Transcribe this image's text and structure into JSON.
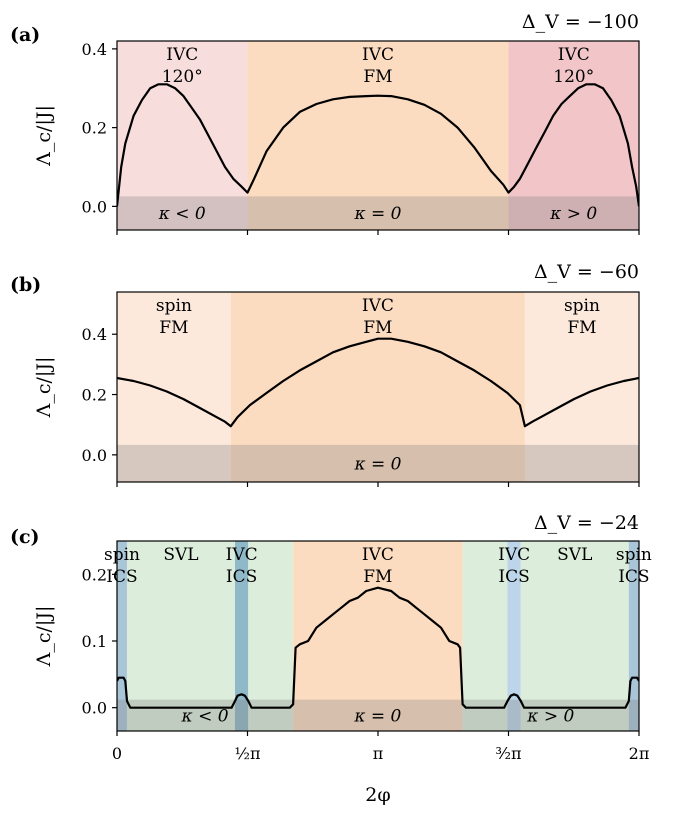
{
  "chart_data": [
    {
      "type": "line",
      "panel_label": "(a)",
      "title": "Δ_V = −100",
      "ylabel": "Λ_c/|J|",
      "xlim": [
        0,
        6.2832
      ],
      "ylim": [
        -0.06,
        0.42
      ],
      "yticks": [
        0.0,
        0.2,
        0.4
      ],
      "ytick_labels": [
        "0.0",
        "0.2",
        "0.4"
      ],
      "regions": [
        {
          "x0": 0,
          "x1": 1.5708,
          "color": "#f7dedd",
          "label": [
            "IVC",
            "120°"
          ]
        },
        {
          "x0": 1.5708,
          "x1": 4.7124,
          "color": "#fcdcc1",
          "label": [
            "IVC",
            "FM"
          ]
        },
        {
          "x0": 4.7124,
          "x1": 6.2832,
          "color": "#f2c6c9",
          "label": [
            "IVC",
            "120°"
          ]
        }
      ],
      "bands": [
        {
          "x0": 0,
          "x1": 1.5708,
          "label": "κ < 0"
        },
        {
          "x0": 1.5708,
          "x1": 4.7124,
          "label": "κ = 0"
        },
        {
          "x0": 4.7124,
          "x1": 6.2832,
          "label": "κ > 0"
        }
      ],
      "series": [
        {
          "x": [
            0,
            0.05,
            0.1,
            0.2,
            0.3,
            0.4,
            0.5,
            0.6,
            0.7,
            0.8,
            0.9,
            1.0,
            1.1,
            1.2,
            1.3,
            1.4,
            1.5,
            1.5708,
            1.65,
            1.8,
            2.0,
            2.2,
            2.4,
            2.6,
            2.8,
            3.0,
            3.1416,
            3.3,
            3.5,
            3.7,
            3.9,
            4.1,
            4.3,
            4.5,
            4.65,
            4.7124,
            4.78,
            4.85,
            4.95,
            5.05,
            5.15,
            5.25,
            5.35,
            5.45,
            5.55,
            5.65,
            5.75,
            5.85,
            5.95,
            6.05,
            6.15,
            6.2,
            6.25,
            6.2832
          ],
          "y": [
            0.0,
            0.1,
            0.16,
            0.23,
            0.27,
            0.3,
            0.31,
            0.31,
            0.3,
            0.28,
            0.25,
            0.22,
            0.18,
            0.14,
            0.1,
            0.07,
            0.05,
            0.035,
            0.07,
            0.14,
            0.2,
            0.24,
            0.26,
            0.272,
            0.278,
            0.28,
            0.281,
            0.28,
            0.272,
            0.258,
            0.235,
            0.2,
            0.15,
            0.09,
            0.055,
            0.035,
            0.05,
            0.07,
            0.11,
            0.15,
            0.19,
            0.23,
            0.26,
            0.28,
            0.3,
            0.31,
            0.31,
            0.3,
            0.27,
            0.23,
            0.16,
            0.1,
            0.05,
            0.0
          ]
        }
      ]
    },
    {
      "type": "line",
      "panel_label": "(b)",
      "title": "Δ_V = −60",
      "ylabel": "Λ_c/|J|",
      "xlim": [
        0,
        6.2832
      ],
      "ylim": [
        -0.09,
        0.54
      ],
      "yticks": [
        0.0,
        0.2,
        0.4
      ],
      "ytick_labels": [
        "0.0",
        "0.2",
        "0.4"
      ],
      "regions": [
        {
          "x0": 0,
          "x1": 1.37,
          "color": "#fde9dc",
          "label": [
            "spin",
            "FM"
          ]
        },
        {
          "x0": 1.37,
          "x1": 4.91,
          "color": "#fcdcc1",
          "label": [
            "IVC",
            "FM"
          ]
        },
        {
          "x0": 4.91,
          "x1": 6.2832,
          "color": "#fde9dc",
          "label": [
            "spin",
            "FM"
          ]
        }
      ],
      "bands": [
        {
          "x0": 0,
          "x1": 6.2832,
          "label": "κ = 0"
        }
      ],
      "series": [
        {
          "x": [
            0,
            0.2,
            0.4,
            0.6,
            0.8,
            1.0,
            1.2,
            1.3,
            1.37,
            1.45,
            1.6,
            1.8,
            2.0,
            2.2,
            2.4,
            2.6,
            2.8,
            3.0,
            3.1416,
            3.3,
            3.5,
            3.7,
            3.9,
            4.1,
            4.3,
            4.5,
            4.7,
            4.85,
            4.91,
            5.0,
            5.1,
            5.3,
            5.5,
            5.7,
            5.9,
            6.1,
            6.2832
          ],
          "y": [
            0.255,
            0.245,
            0.23,
            0.21,
            0.185,
            0.155,
            0.125,
            0.11,
            0.095,
            0.125,
            0.165,
            0.205,
            0.245,
            0.28,
            0.31,
            0.34,
            0.36,
            0.375,
            0.385,
            0.385,
            0.375,
            0.36,
            0.34,
            0.31,
            0.28,
            0.245,
            0.205,
            0.165,
            0.095,
            0.11,
            0.125,
            0.155,
            0.185,
            0.21,
            0.23,
            0.245,
            0.255
          ]
        }
      ]
    },
    {
      "type": "line",
      "panel_label": "(c)",
      "title": "Δ_V = −24",
      "ylabel": "Λ_c/|J|",
      "xlim": [
        0,
        6.2832
      ],
      "ylim": [
        -0.035,
        0.25
      ],
      "yticks": [
        0.0,
        0.1,
        0.2
      ],
      "ytick_labels": [
        "0.0",
        "0.1",
        "0.2"
      ],
      "xticks": [
        0,
        1.5708,
        3.1416,
        4.7124,
        6.2832
      ],
      "xtick_labels": [
        "0",
        "½π",
        "π",
        "³⁄₂π",
        "2π"
      ],
      "xlabel": "2φ",
      "regions": [
        {
          "x0": 0,
          "x1": 0.12,
          "color": "#a9c6d9",
          "label": [
            "spin",
            "ICS"
          ]
        },
        {
          "x0": 0.12,
          "x1": 1.42,
          "color": "#dceedb",
          "label": [
            "SVL"
          ]
        },
        {
          "x0": 1.42,
          "x1": 1.58,
          "color": "#8fb8c8",
          "label": [
            "IVC",
            "ICS"
          ]
        },
        {
          "x0": 1.58,
          "x1": 2.12,
          "color": "#dceedb"
        },
        {
          "x0": 2.12,
          "x1": 4.16,
          "color": "#fcdcc1",
          "label": [
            "IVC",
            "FM"
          ]
        },
        {
          "x0": 4.16,
          "x1": 4.7,
          "color": "#dceedb"
        },
        {
          "x0": 4.7,
          "x1": 4.86,
          "color": "#bcd5ea",
          "label": [
            "IVC",
            "ICS"
          ]
        },
        {
          "x0": 4.86,
          "x1": 6.16,
          "color": "#dceedb",
          "label": [
            "SVL"
          ]
        },
        {
          "x0": 6.16,
          "x1": 6.2832,
          "color": "#a9c6d9",
          "label": [
            "spin",
            "ICS"
          ]
        }
      ],
      "bands": [
        {
          "x0": 0,
          "x1": 2.12,
          "label": "κ < 0"
        },
        {
          "x0": 2.12,
          "x1": 4.16,
          "label": "κ = 0"
        },
        {
          "x0": 4.16,
          "x1": 6.2832,
          "label": "κ > 0"
        }
      ],
      "series": [
        {
          "x": [
            0,
            0.02,
            0.08,
            0.1,
            0.12,
            0.16,
            1.38,
            1.42,
            1.45,
            1.5,
            1.54,
            1.58,
            1.62,
            2.08,
            2.12,
            2.15,
            2.2,
            2.3,
            2.4,
            2.5,
            2.6,
            2.7,
            2.8,
            2.9,
            3.0,
            3.1416,
            3.3,
            3.4,
            3.5,
            3.6,
            3.7,
            3.8,
            3.9,
            4.0,
            4.1,
            4.13,
            4.16,
            4.2,
            4.66,
            4.7,
            4.74,
            4.78,
            4.82,
            4.86,
            4.9,
            6.12,
            6.16,
            6.18,
            6.2,
            6.26,
            6.2832
          ],
          "y": [
            0.04,
            0.045,
            0.045,
            0.04,
            0.01,
            0.0,
            0.0,
            0.01,
            0.018,
            0.02,
            0.018,
            0.01,
            0.0,
            0.0,
            0.005,
            0.09,
            0.095,
            0.1,
            0.12,
            0.13,
            0.14,
            0.15,
            0.16,
            0.165,
            0.175,
            0.18,
            0.175,
            0.165,
            0.16,
            0.15,
            0.14,
            0.13,
            0.12,
            0.1,
            0.095,
            0.09,
            0.005,
            0.0,
            0.0,
            0.01,
            0.018,
            0.02,
            0.018,
            0.01,
            0.0,
            0.0,
            0.01,
            0.04,
            0.045,
            0.045,
            0.04
          ]
        }
      ]
    }
  ]
}
